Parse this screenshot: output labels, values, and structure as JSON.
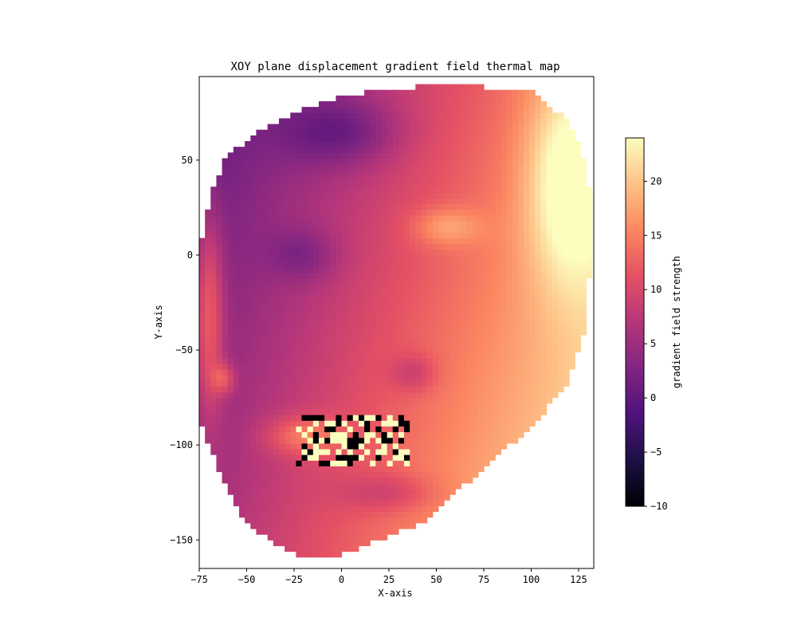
{
  "chart_data": {
    "type": "heatmap",
    "title": "XOY plane displacement gradient field thermal map",
    "xlabel": "X-axis",
    "ylabel": "Y-axis",
    "xlim": [
      -75,
      133
    ],
    "ylim": [
      -165,
      94
    ],
    "x_ticks": [
      -75,
      -50,
      -25,
      0,
      25,
      50,
      75,
      100,
      125
    ],
    "y_ticks": [
      -150,
      -100,
      -50,
      0,
      50
    ],
    "grid": false,
    "colormap": "magma",
    "colormap_stops": [
      "#000004",
      "#1c1044",
      "#4f127b",
      "#812581",
      "#b5367a",
      "#e55064",
      "#fb8761",
      "#fec287",
      "#fcfdbf"
    ],
    "colorbar": {
      "label": "gradient field strength",
      "range": [
        -10,
        24
      ],
      "ticks": [
        -10,
        -5,
        0,
        5,
        10,
        15,
        20
      ]
    },
    "pixel_size": 3,
    "field_description": "face-shaped displacement gradient field: low values (purple) over upper-left forehead and cheek, high values (cream) along the right edge, noisy extreme values near mouth region around y=-100",
    "hot_spots": [
      {
        "x": 115,
        "y": 40,
        "value": 24
      },
      {
        "x": 55,
        "y": 10,
        "value": 17
      },
      {
        "x": -62,
        "y": -65,
        "value": 13
      },
      {
        "x": -68,
        "y": -15,
        "value": 20
      }
    ],
    "cold_spots": [
      {
        "x": 0,
        "y": 65,
        "value": 1
      },
      {
        "x": -20,
        "y": 0,
        "value": 3
      },
      {
        "x": 38,
        "y": -62,
        "value": 2
      },
      {
        "x": 25,
        "y": -125,
        "value": 3
      }
    ]
  }
}
